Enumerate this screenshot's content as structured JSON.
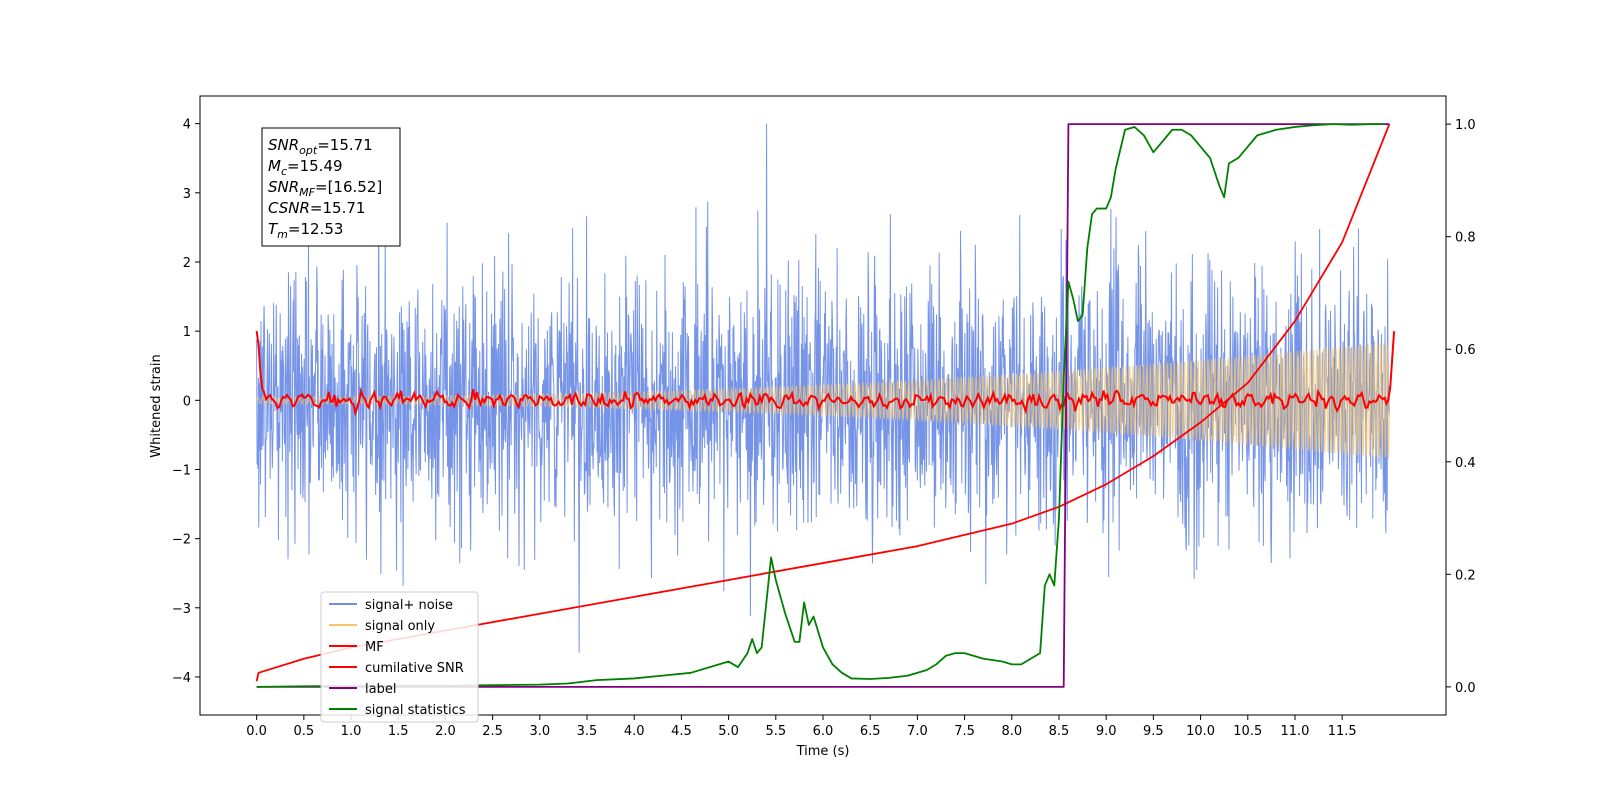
{
  "chart_data": {
    "type": "line",
    "xlabel": "Time (s)",
    "ylabel": "Whitened strain",
    "xlim": [
      -0.6,
      12.6
    ],
    "ylim": [
      -4.55,
      4.4
    ],
    "y2lim": [
      -0.05,
      1.05
    ],
    "x_ticks": [
      "0.0",
      "0.5",
      "1.0",
      "1.5",
      "2.0",
      "2.5",
      "3.0",
      "3.5",
      "4.0",
      "4.5",
      "5.0",
      "5.5",
      "6.0",
      "6.5",
      "7.0",
      "7.5",
      "8.0",
      "8.5",
      "9.0",
      "9.5",
      "10.0",
      "10.5",
      "11.0",
      "11.5"
    ],
    "y_ticks": [
      "4",
      "3",
      "2",
      "1",
      "0",
      "−1",
      "−2",
      "−3",
      "−4"
    ],
    "y2_ticks": [
      "1.0",
      "0.8",
      "0.6",
      "0.4",
      "0.2",
      "0.0"
    ],
    "grid": false,
    "legend_position": "bottom-left",
    "annotation": {
      "lines": [
        {
          "var": "SNR",
          "sub": "opt",
          "value": "=15.71"
        },
        {
          "var": "M",
          "sub": "c",
          "value": "=15.49"
        },
        {
          "var": "SNR",
          "sub": "MF",
          "value": "=[16.52]"
        },
        {
          "var": "CSNR",
          "sub": "",
          "value": "=15.71"
        },
        {
          "var": "T",
          "sub": "m",
          "value": "=12.53"
        }
      ]
    },
    "series": [
      {
        "name": "signal+ noise",
        "color": "#6f8ee6",
        "axis": "left",
        "kind": "noise",
        "std": 0.95,
        "range": [
          -3.65,
          4.0
        ],
        "t_end": 12.0
      },
      {
        "name": "signal only",
        "color": "#f5c46b",
        "axis": "left",
        "kind": "chirp",
        "amp_start": 0.05,
        "amp_end": 0.85,
        "t_end": 12.0
      },
      {
        "name": "MF",
        "color": "#ff0000",
        "axis": "left",
        "kind": "mf",
        "x": [
          0.0,
          0.02,
          0.05,
          0.1,
          0.15,
          12.0,
          12.03,
          12.05
        ],
        "y": [
          1.0,
          0.8,
          0.2,
          0.05,
          0.0,
          0.0,
          0.6,
          1.0
        ],
        "wiggle": 0.06
      },
      {
        "name": "cumilative SNR",
        "color": "#ff0000",
        "axis": "right",
        "x": [
          0.0,
          0.02,
          0.5,
          1.0,
          2.0,
          3.0,
          4.0,
          5.0,
          6.0,
          7.0,
          8.0,
          8.5,
          9.0,
          9.5,
          10.0,
          10.5,
          11.0,
          11.5,
          12.0
        ],
        "y": [
          0.01,
          0.025,
          0.05,
          0.07,
          0.1,
          0.13,
          0.16,
          0.19,
          0.22,
          0.25,
          0.29,
          0.32,
          0.36,
          0.41,
          0.47,
          0.54,
          0.65,
          0.79,
          1.0
        ]
      },
      {
        "name": "label",
        "color": "#800080",
        "axis": "right",
        "x": [
          0.0,
          8.55,
          8.6,
          12.0
        ],
        "y": [
          0.0,
          0.0,
          1.0,
          1.0
        ]
      },
      {
        "name": "signal statistics",
        "color": "#008000",
        "axis": "right",
        "x": [
          0.0,
          0.5,
          1.0,
          1.5,
          2.0,
          2.5,
          3.0,
          3.3,
          3.6,
          4.0,
          4.3,
          4.6,
          4.8,
          5.0,
          5.1,
          5.2,
          5.25,
          5.3,
          5.35,
          5.4,
          5.45,
          5.5,
          5.6,
          5.7,
          5.75,
          5.8,
          5.85,
          5.9,
          6.0,
          6.1,
          6.2,
          6.3,
          6.5,
          6.7,
          6.9,
          7.1,
          7.2,
          7.3,
          7.4,
          7.5,
          7.7,
          7.9,
          8.0,
          8.1,
          8.2,
          8.3,
          8.35,
          8.4,
          8.45,
          8.5,
          8.55,
          8.6,
          8.65,
          8.7,
          8.75,
          8.8,
          8.85,
          8.9,
          9.0,
          9.05,
          9.1,
          9.2,
          9.3,
          9.4,
          9.5,
          9.6,
          9.7,
          9.8,
          9.9,
          10.0,
          10.1,
          10.2,
          10.25,
          10.3,
          10.4,
          10.5,
          10.6,
          10.8,
          11.0,
          11.2,
          11.4,
          11.6,
          11.8,
          11.95
        ],
        "y": [
          0.0,
          0.001,
          0.002,
          0.002,
          0.002,
          0.003,
          0.004,
          0.006,
          0.012,
          0.015,
          0.02,
          0.025,
          0.035,
          0.045,
          0.035,
          0.06,
          0.085,
          0.06,
          0.07,
          0.15,
          0.23,
          0.19,
          0.13,
          0.08,
          0.08,
          0.15,
          0.11,
          0.125,
          0.07,
          0.04,
          0.025,
          0.015,
          0.014,
          0.016,
          0.02,
          0.03,
          0.04,
          0.055,
          0.06,
          0.06,
          0.05,
          0.045,
          0.04,
          0.04,
          0.05,
          0.06,
          0.18,
          0.2,
          0.18,
          0.3,
          0.55,
          0.72,
          0.69,
          0.65,
          0.66,
          0.78,
          0.84,
          0.85,
          0.85,
          0.87,
          0.92,
          0.99,
          0.995,
          0.98,
          0.95,
          0.97,
          0.99,
          0.99,
          0.98,
          0.96,
          0.94,
          0.89,
          0.87,
          0.93,
          0.94,
          0.96,
          0.98,
          0.99,
          0.995,
          0.998,
          1.0,
          0.999,
          1.0,
          1.0
        ]
      }
    ]
  }
}
